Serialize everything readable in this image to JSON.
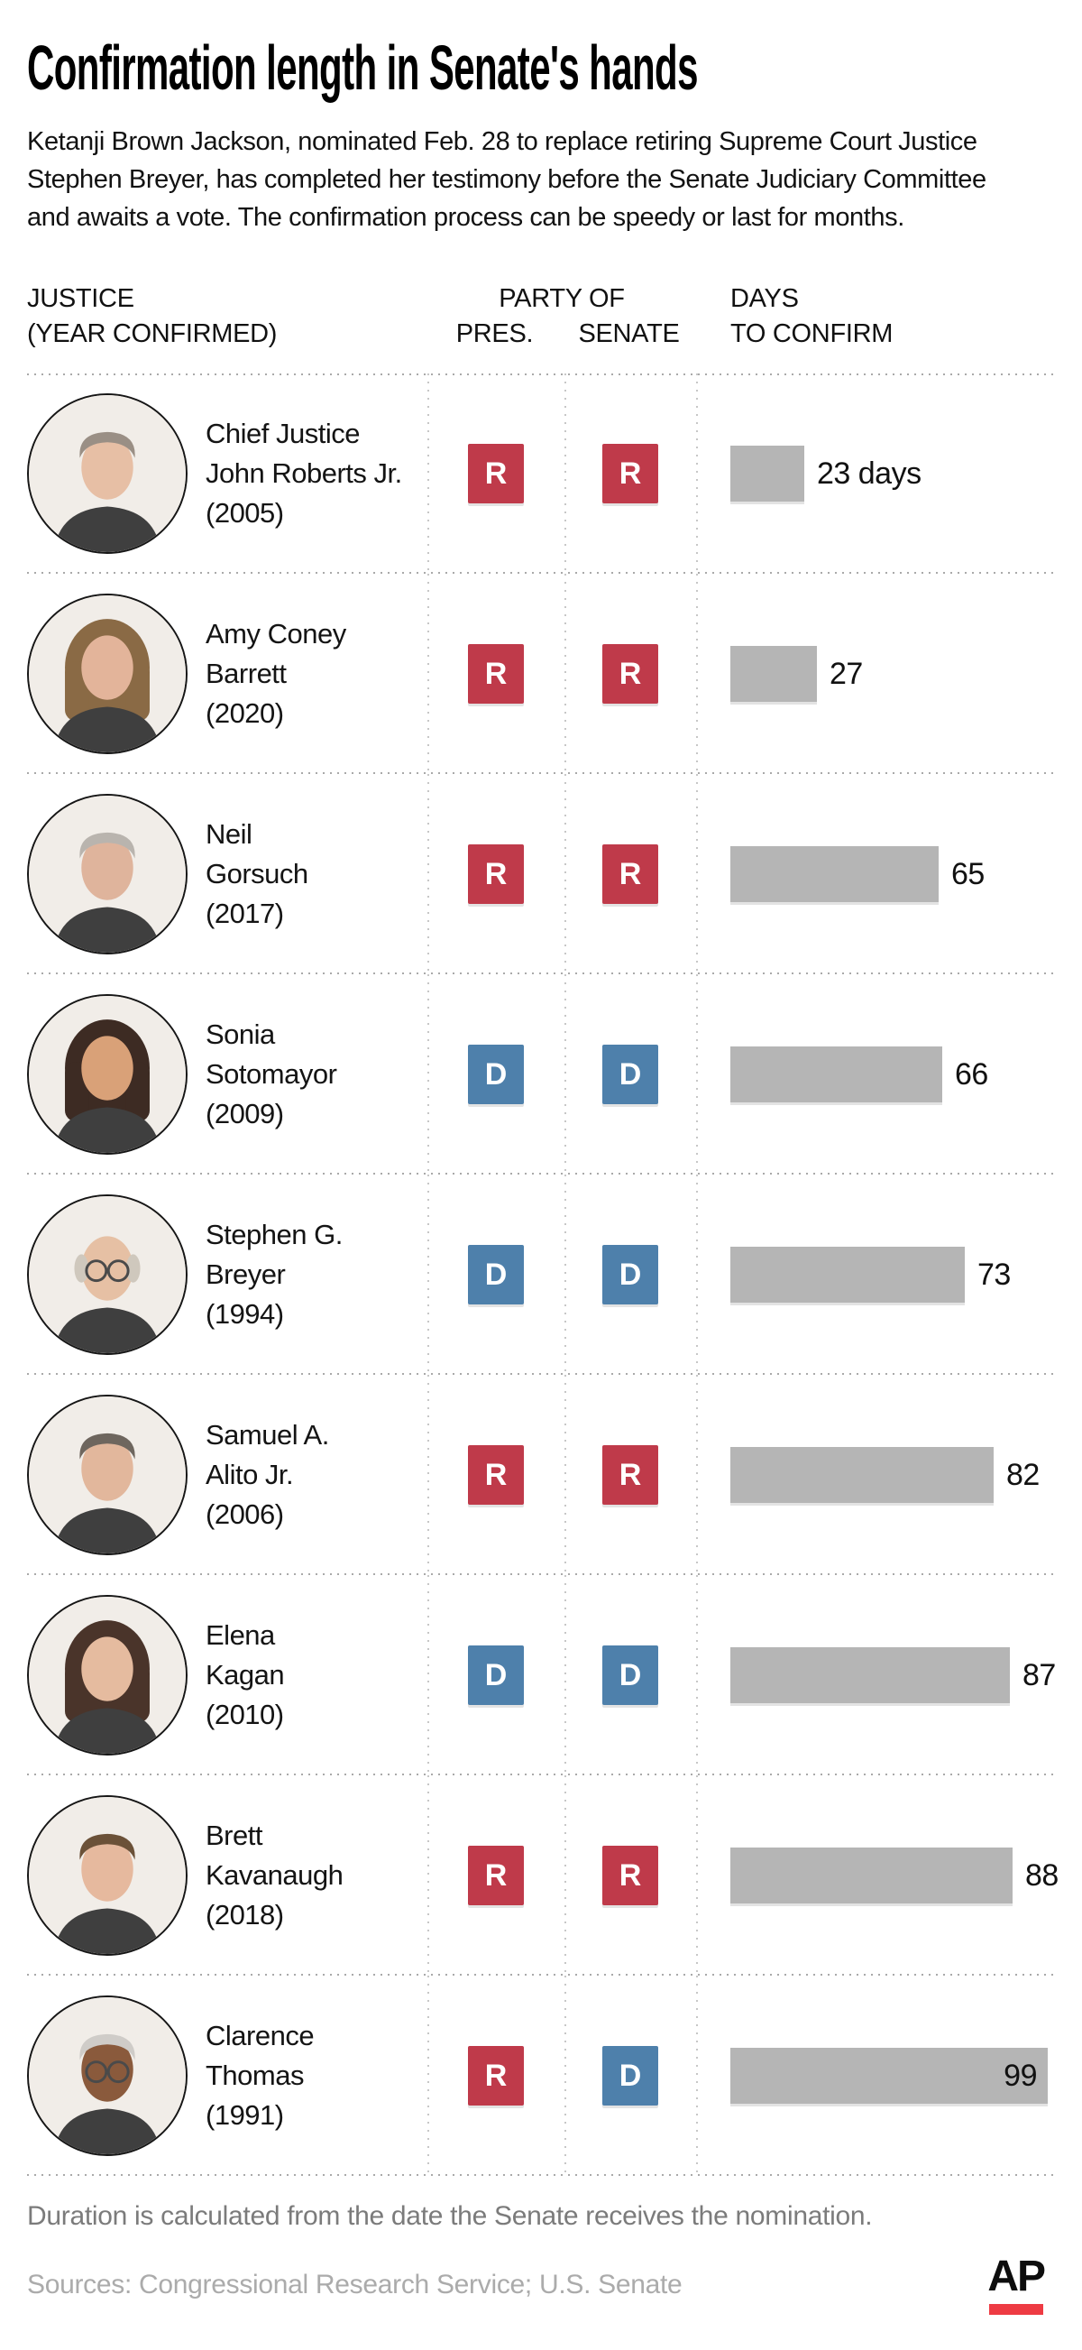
{
  "header": {
    "title": "Confirmation length in Senate's hands",
    "subtitle_lines": [
      "Ketanji Brown Jackson, nominated Feb. 28 to replace retiring Supreme Court Justice",
      "Stephen Breyer, has completed her testimony before the Senate Judiciary Committee",
      "and awaits a vote. The confirmation process can be speedy or last for months."
    ]
  },
  "columns": {
    "justice_line1": "JUSTICE",
    "justice_line2": "(YEAR CONFIRMED)",
    "party_group": "PARTY OF",
    "pres": "PRES.",
    "senate": "SENATE",
    "days_line1": "DAYS",
    "days_line2": "TO CONFIRM"
  },
  "colors": {
    "republican": "#bf3a4a",
    "democrat": "#4e80ab",
    "bar": "#b5b5b5",
    "ap_red": "#ee3b43"
  },
  "table": {
    "rows": [
      {
        "name_lines": [
          "Chief Justice",
          "John Roberts Jr.",
          "(2005)"
        ],
        "party_pres": "R",
        "party_senate": "R",
        "days": 23,
        "days_label": "23 days",
        "label_position": "outside",
        "avatar": {
          "skin": "#e7bfa5",
          "hair": "#9a8f85",
          "style": "short",
          "glasses": false
        }
      },
      {
        "name_lines": [
          "Amy Coney",
          "Barrett",
          "(2020)"
        ],
        "party_pres": "R",
        "party_senate": "R",
        "days": 27,
        "days_label": "27",
        "label_position": "outside",
        "avatar": {
          "skin": "#e3b49a",
          "hair": "#8a6a45",
          "style": "long",
          "glasses": false
        }
      },
      {
        "name_lines": [
          "Neil",
          "Gorsuch",
          "(2017)"
        ],
        "party_pres": "R",
        "party_senate": "R",
        "days": 65,
        "days_label": "65",
        "label_position": "outside",
        "avatar": {
          "skin": "#dfb49c",
          "hair": "#b9b4ae",
          "style": "short",
          "glasses": false
        }
      },
      {
        "name_lines": [
          "Sonia",
          "Sotomayor",
          "(2009)"
        ],
        "party_pres": "D",
        "party_senate": "D",
        "days": 66,
        "days_label": "66",
        "label_position": "outside",
        "avatar": {
          "skin": "#d9a178",
          "hair": "#3d2b23",
          "style": "long",
          "glasses": false
        }
      },
      {
        "name_lines": [
          "Stephen G.",
          "Breyer",
          "(1994)"
        ],
        "party_pres": "D",
        "party_senate": "D",
        "days": 73,
        "days_label": "73",
        "label_position": "outside",
        "avatar": {
          "skin": "#e6c0a4",
          "hair": "#cfc8bd",
          "style": "bald",
          "glasses": true
        }
      },
      {
        "name_lines": [
          "Samuel A.",
          "Alito Jr.",
          "(2006)"
        ],
        "party_pres": "R",
        "party_senate": "R",
        "days": 82,
        "days_label": "82",
        "label_position": "outside",
        "avatar": {
          "skin": "#e2b79c",
          "hair": "#6e665e",
          "style": "short",
          "glasses": false
        }
      },
      {
        "name_lines": [
          "Elena",
          "Kagan",
          "(2010)"
        ],
        "party_pres": "D",
        "party_senate": "D",
        "days": 87,
        "days_label": "87",
        "label_position": "outside",
        "avatar": {
          "skin": "#e5bb9f",
          "hair": "#4a342a",
          "style": "long",
          "glasses": false
        }
      },
      {
        "name_lines": [
          "Brett",
          "Kavanaugh",
          "(2018)"
        ],
        "party_pres": "R",
        "party_senate": "R",
        "days": 88,
        "days_label": "88",
        "label_position": "outside",
        "avatar": {
          "skin": "#e6b99e",
          "hair": "#6b5138",
          "style": "short",
          "glasses": false
        }
      },
      {
        "name_lines": [
          "Clarence",
          "Thomas",
          "(1991)"
        ],
        "party_pres": "R",
        "party_senate": "D",
        "days": 99,
        "days_label": "99",
        "label_position": "inside",
        "avatar": {
          "skin": "#8a5a3c",
          "hair": "#cfccc8",
          "style": "short",
          "glasses": true
        }
      }
    ]
  },
  "footer": {
    "note": "Duration is calculated from the date the Senate receives the nomination.",
    "sources": "Sources: Congressional Research Service; U.S. Senate",
    "logo": "AP"
  },
  "chart_data": {
    "type": "bar",
    "orientation": "horizontal",
    "title": "Confirmation length in Senate's hands",
    "categories": [
      "Chief Justice John Roberts Jr. (2005)",
      "Amy Coney Barrett (2020)",
      "Neil Gorsuch (2017)",
      "Sonia Sotomayor (2009)",
      "Stephen G. Breyer (1994)",
      "Samuel A. Alito Jr. (2006)",
      "Elena Kagan (2010)",
      "Brett Kavanaugh (2018)",
      "Clarence Thomas (1991)"
    ],
    "values": [
      23,
      27,
      65,
      66,
      73,
      82,
      87,
      88,
      99
    ],
    "value_labels": [
      "23 days",
      "27",
      "65",
      "66",
      "73",
      "82",
      "87",
      "88",
      "99"
    ],
    "value_unit": "days",
    "xlabel": "DAYS TO CONFIRM",
    "xlim": [
      0,
      105
    ],
    "grid": false,
    "bar_color": "#b5b5b5",
    "annotations": {
      "party_of_president": [
        "R",
        "R",
        "R",
        "D",
        "D",
        "R",
        "D",
        "R",
        "R"
      ],
      "party_of_senate": [
        "R",
        "R",
        "R",
        "D",
        "D",
        "R",
        "D",
        "R",
        "D"
      ]
    }
  }
}
